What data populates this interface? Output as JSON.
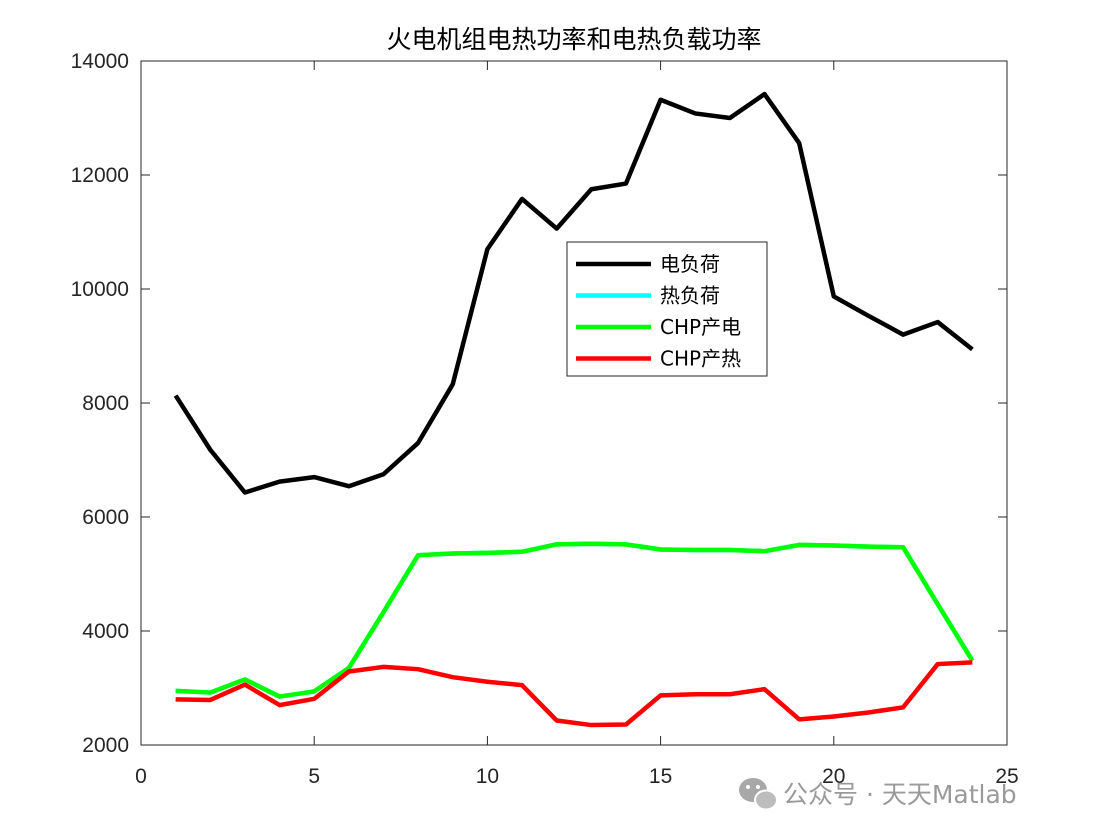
{
  "chart_data": {
    "type": "line",
    "title": "火电机组电热功率和电热负载功率",
    "xlabel": "",
    "ylabel": "",
    "xlim": [
      0,
      25
    ],
    "ylim": [
      2000,
      14000
    ],
    "xticks": [
      0,
      5,
      10,
      15,
      20,
      25
    ],
    "yticks": [
      2000,
      4000,
      6000,
      8000,
      10000,
      12000,
      14000
    ],
    "grid": false,
    "legend_position": "center",
    "x": [
      1,
      2,
      3,
      4,
      5,
      6,
      7,
      8,
      9,
      10,
      11,
      12,
      13,
      14,
      15,
      16,
      17,
      18,
      19,
      20,
      21,
      22,
      23,
      24
    ],
    "series": [
      {
        "name": "电负荷",
        "color": "#000000",
        "values": [
          8130,
          7180,
          6430,
          6620,
          6700,
          6540,
          6750,
          7300,
          8330,
          10700,
          11580,
          11060,
          11750,
          11850,
          13320,
          13080,
          13000,
          13420,
          12560,
          9870,
          9530,
          9200,
          9420,
          8940
        ]
      },
      {
        "name": "热负荷",
        "color": "#00ffff",
        "values": [
          2950,
          2920,
          3150,
          2850,
          2940,
          3350,
          4330,
          5330,
          5360,
          5370,
          5390,
          5520,
          5530,
          5520,
          5430,
          5420,
          5420,
          5400,
          5510,
          5500,
          5480,
          5470,
          4470,
          3480
        ]
      },
      {
        "name": "CHP产电",
        "color": "#00ff00",
        "values": [
          2950,
          2920,
          3150,
          2850,
          2940,
          3350,
          4330,
          5330,
          5360,
          5370,
          5390,
          5520,
          5530,
          5520,
          5430,
          5420,
          5420,
          5400,
          5510,
          5500,
          5480,
          5470,
          4470,
          3480
        ]
      },
      {
        "name": "CHP产热",
        "color": "#ff0000",
        "values": [
          2800,
          2790,
          3060,
          2700,
          2810,
          3290,
          3370,
          3330,
          3190,
          3110,
          3050,
          2430,
          2350,
          2360,
          2870,
          2890,
          2890,
          2980,
          2450,
          2500,
          2570,
          2660,
          3420,
          3450
        ]
      }
    ]
  },
  "watermark": {
    "text": "公众号 · 天天Matlab",
    "icon": "wechat-icon"
  }
}
